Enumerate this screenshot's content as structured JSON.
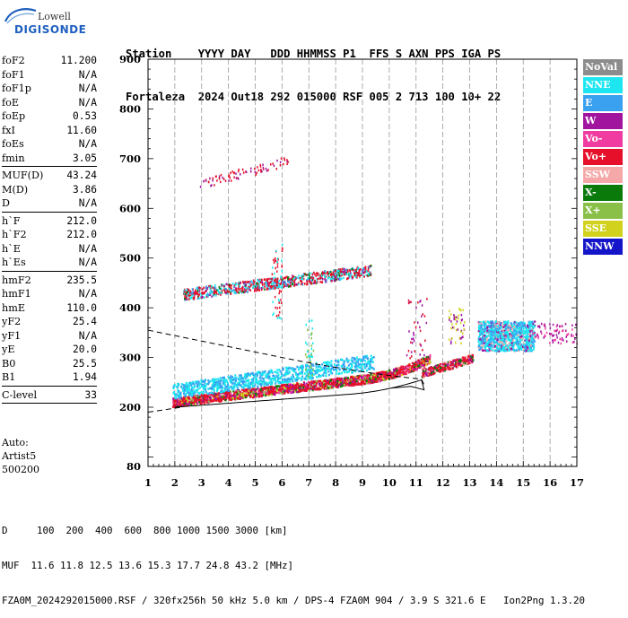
{
  "logo": {
    "line1": "Lowell",
    "line2": "DIGISONDE"
  },
  "header": {
    "row1": [
      "Station",
      "YYYY",
      "DAY",
      "DDD",
      "HHMMSS",
      "P1",
      "FFS",
      "S",
      "AXN",
      "PPS",
      "IGA",
      "PS"
    ],
    "row2": [
      "Fortaleza",
      "2024",
      "Out18",
      "292",
      "015000",
      "RSF",
      "005",
      "2",
      "713",
      "100",
      "10+",
      "22"
    ]
  },
  "params": {
    "group1": [
      {
        "k": "foF2",
        "v": "11.200"
      },
      {
        "k": "foF1",
        "v": "N/A"
      },
      {
        "k": "foF1p",
        "v": "N/A"
      },
      {
        "k": "foE",
        "v": "N/A"
      },
      {
        "k": "foEp",
        "v": "0.53"
      },
      {
        "k": "fxI",
        "v": "11.60"
      },
      {
        "k": "foEs",
        "v": "N/A"
      },
      {
        "k": "fmin",
        "v": "3.05"
      }
    ],
    "group2": [
      {
        "k": "MUF(D)",
        "v": "43.24"
      },
      {
        "k": "M(D)",
        "v": "3.86"
      },
      {
        "k": "D",
        "v": "N/A"
      }
    ],
    "group3": [
      {
        "k": "h`F",
        "v": "212.0"
      },
      {
        "k": "h`F2",
        "v": "212.0"
      },
      {
        "k": "h`E",
        "v": "N/A"
      },
      {
        "k": "h`Es",
        "v": "N/A"
      }
    ],
    "group4": [
      {
        "k": "hmF2",
        "v": "235.5"
      },
      {
        "k": "hmF1",
        "v": "N/A"
      },
      {
        "k": "hmE",
        "v": "110.0"
      },
      {
        "k": "yF2",
        "v": "25.4"
      },
      {
        "k": "yF1",
        "v": "N/A"
      },
      {
        "k": "yE",
        "v": "20.0"
      },
      {
        "k": "B0",
        "v": "25.5"
      },
      {
        "k": "B1",
        "v": "1.94"
      }
    ],
    "group5": [
      {
        "k": "C-level",
        "v": "33"
      }
    ]
  },
  "auto": {
    "line1": "Auto:",
    "line2": "Artist5",
    "line3": "500200"
  },
  "legend": [
    {
      "label": "NoVal",
      "color": "#8c8c8c"
    },
    {
      "label": "NNE",
      "color": "#1ee6f0"
    },
    {
      "label": "E",
      "color": "#3aa0f0"
    },
    {
      "label": "W",
      "color": "#a0149e"
    },
    {
      "label": "Vo-",
      "color": "#f03ca0"
    },
    {
      "label": "Vo+",
      "color": "#e6102a"
    },
    {
      "label": "SSW",
      "color": "#f5a8a8"
    },
    {
      "label": "X-",
      "color": "#0a7a0a"
    },
    {
      "label": "X+",
      "color": "#8ac048"
    },
    {
      "label": "SSE",
      "color": "#d2d21e"
    },
    {
      "label": "NNW",
      "color": "#1414c8"
    }
  ],
  "axes": {
    "y_ticks": [
      "900",
      "800",
      "700",
      "600",
      "500",
      "400",
      "300",
      "200",
      "80"
    ],
    "x_ticks": [
      "1",
      "2",
      "3",
      "4",
      "5",
      "6",
      "7",
      "8",
      "9",
      "10",
      "11",
      "12",
      "13",
      "14",
      "15",
      "16",
      "17"
    ]
  },
  "footer": {
    "line1": "D     100  200  400  600  800 1000 1500 3000 [km]",
    "line2": "MUF  11.6 11.8 12.5 13.6 15.3 17.7 24.8 43.2 [MHz]",
    "line3": "FZA0M_2024292015000.RSF / 320fx256h 50 kHz 5.0 km / DPS-4 FZA0M 904 / 3.9 S 321.6 E   Ion2Png 1.3.20"
  }
}
